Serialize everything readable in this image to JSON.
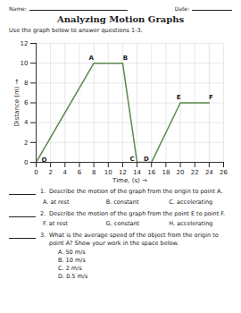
{
  "chart_data": {
    "type": "line",
    "title": "Analyzing Motion Graphs",
    "name_label": "Name:",
    "date_label": "Date:",
    "instruction": "Use the graph below to answer questions 1-3.",
    "xlabel": "Time, (s)",
    "ylabel": "Distance (m)",
    "x": [
      0,
      8,
      12,
      14,
      16,
      20,
      24
    ],
    "values": [
      0,
      10,
      10,
      0,
      0,
      6,
      6
    ],
    "point_labels": [
      "O",
      "A",
      "B",
      "C",
      "D",
      "E",
      "F"
    ],
    "color": "#5a8a4a",
    "xlim": [
      0,
      26
    ],
    "ylim": [
      0,
      12
    ],
    "xticks": [
      0,
      2,
      4,
      6,
      8,
      10,
      12,
      14,
      16,
      18,
      20,
      22,
      24,
      26
    ],
    "yticks": [
      0,
      2,
      4,
      6,
      8,
      10,
      12
    ],
    "grid": true,
    "questions": [
      {
        "number": "1.",
        "text": "Describe the motion of the graph from the origin to point A.",
        "choices": [
          {
            "letter": "A.",
            "text": "at rest"
          },
          {
            "letter": "B.",
            "text": "constant"
          },
          {
            "letter": "C.",
            "text": "accelerating"
          }
        ]
      },
      {
        "number": "2.",
        "text": "Describe the motion of the graph from the point E to point F.",
        "choices": [
          {
            "letter": "F.",
            "text": "at rest"
          },
          {
            "letter": "G.",
            "text": "constant"
          },
          {
            "letter": "H.",
            "text": "accelerating"
          }
        ]
      },
      {
        "number": "3.",
        "text": "What is the average speed of the object from the origin to point A?  Show your work in the space below.",
        "choices": [
          {
            "letter": "A.",
            "text": "50 m/s"
          },
          {
            "letter": "B.",
            "text": "10 m/s"
          },
          {
            "letter": "C.",
            "text": "2 m/s"
          },
          {
            "letter": "D.",
            "text": "0.5 m/s"
          }
        ]
      }
    ]
  }
}
